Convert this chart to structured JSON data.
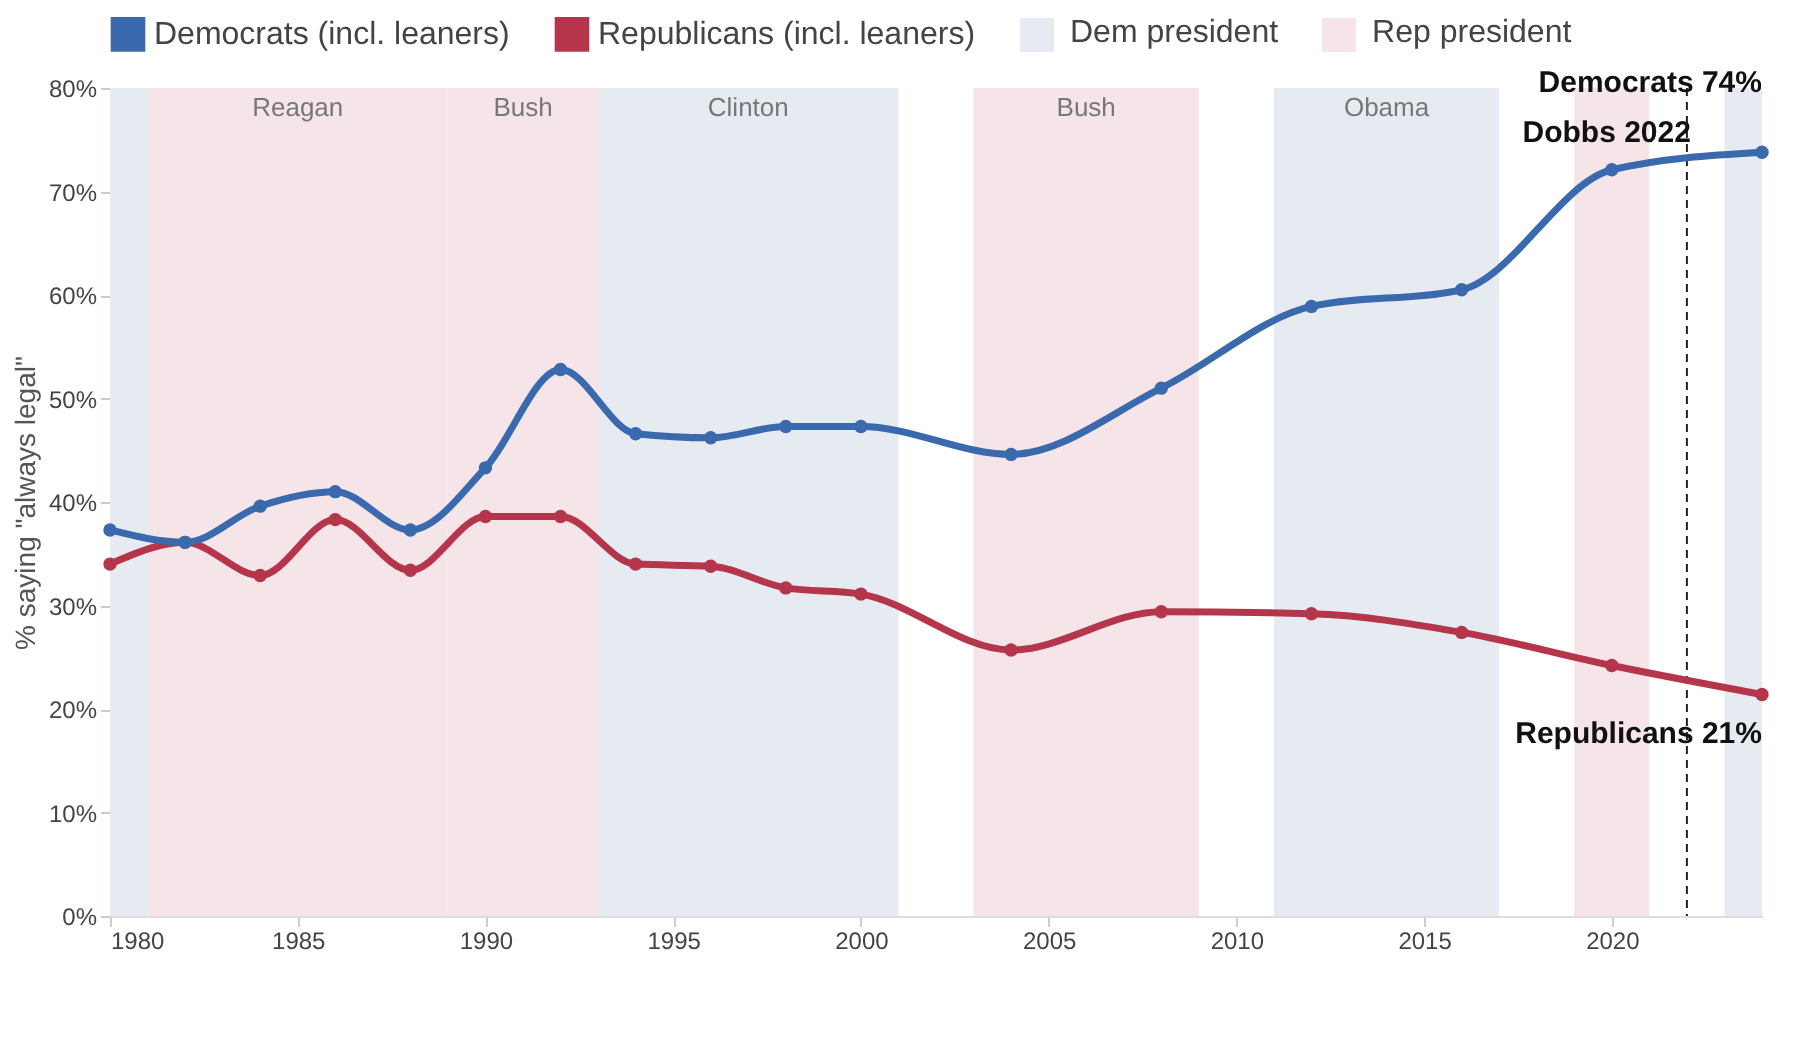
{
  "chart_data": {
    "type": "line",
    "ylabel": "% saying \"always legal\"",
    "x": [
      1980,
      1982,
      1984,
      1986,
      1988,
      1990,
      1992,
      1994,
      1996,
      1998,
      2000,
      2004,
      2008,
      2012,
      2016,
      2020,
      2024
    ],
    "series": [
      {
        "name": "Democrats (incl. leaners)",
        "color": "#3a6aad",
        "values": [
          37.3,
          36.1,
          39.6,
          41.0,
          37.3,
          43.3,
          52.8,
          46.6,
          46.2,
          47.3,
          47.3,
          44.6,
          51.0,
          58.9,
          60.5,
          72.1,
          73.8
        ]
      },
      {
        "name": "Republicans (incl. leaners)",
        "color": "#b5364b",
        "values": [
          34.0,
          36.1,
          32.9,
          38.3,
          33.4,
          38.6,
          38.6,
          34.0,
          33.8,
          31.7,
          31.1,
          25.7,
          29.4,
          29.2,
          27.4,
          24.2,
          21.4
        ]
      }
    ],
    "xlim": [
      1980,
      2024
    ],
    "xticks": [
      1980,
      1985,
      1990,
      1995,
      2000,
      2005,
      2010,
      2015,
      2020
    ],
    "ylim": [
      0,
      80
    ],
    "yticks": [
      {
        "value": 0,
        "label": "0%"
      },
      {
        "value": 10,
        "label": "10%"
      },
      {
        "value": 20,
        "label": "20%"
      },
      {
        "value": 30,
        "label": "30%"
      },
      {
        "value": 40,
        "label": "40%"
      },
      {
        "value": 50,
        "label": "50%"
      },
      {
        "value": 60,
        "label": "60%"
      },
      {
        "value": 70,
        "label": "70%"
      },
      {
        "value": 80,
        "label": "80%"
      }
    ],
    "bands": [
      {
        "axis": "x",
        "from": 1980,
        "to": 1981,
        "color": "#e6eaf1"
      },
      {
        "axis": "x",
        "from": 1981,
        "to": 1989,
        "label": "Reagan",
        "color": "#f5e5e8"
      },
      {
        "axis": "x",
        "from": 1989,
        "to": 1993,
        "label": "Bush",
        "color": "#f5e5e8"
      },
      {
        "axis": "x",
        "from": 1993,
        "to": 2001,
        "label": "Clinton",
        "color": "#e6eaf1"
      },
      {
        "axis": "x",
        "from": 2003,
        "to": 2009,
        "label": "Bush",
        "color": "#f5e5e8"
      },
      {
        "axis": "x",
        "from": 2011,
        "to": 2017,
        "label": "Obama",
        "color": "#e6eaf1"
      },
      {
        "axis": "x",
        "from": 2019,
        "to": 2021,
        "color": "#f5e5e8"
      },
      {
        "axis": "x",
        "from": 2023,
        "to": 2024,
        "color": "#e6eaf1"
      }
    ],
    "ref_lines": [
      {
        "axis": "x",
        "value": 2022,
        "label": "Dobbs 2022",
        "line_style": "dashed",
        "color": "#222222"
      }
    ],
    "annotations": [
      "Dem president",
      "Rep president",
      {
        "text": "Democrats 74%",
        "x": 2024,
        "y": 74
      },
      {
        "text": "Republicans 21%",
        "x": 2024,
        "y": 21
      }
    ],
    "legend": "top left",
    "marker": "circle",
    "line_style": "solid"
  }
}
